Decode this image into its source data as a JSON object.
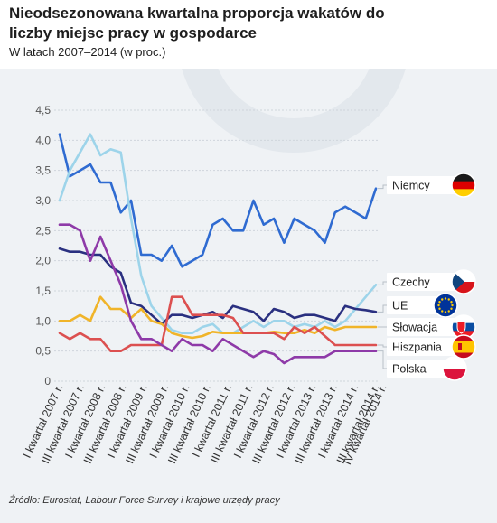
{
  "title": "Nieodsezonowana kwartalna proporcja wakatów do liczby miejsc pracy w gospodarce",
  "subtitle": "W latach 2007–2014 (w proc.)",
  "source": "Źródło: Eurostat, Labour Force Survey i krajowe urzędy pracy",
  "chart_data": {
    "type": "line",
    "ylim": [
      0,
      4.5
    ],
    "yticks": [
      "0",
      "0,5",
      "1,0",
      "1,5",
      "2,0",
      "2,5",
      "3,0",
      "3,5",
      "4,0",
      "4,5"
    ],
    "x": [
      "2007Q1",
      "2007Q2",
      "2007Q3",
      "2007Q4",
      "2008Q1",
      "2008Q2",
      "2008Q3",
      "2008Q4",
      "2009Q1",
      "2009Q2",
      "2009Q3",
      "2009Q4",
      "2010Q1",
      "2010Q2",
      "2010Q3",
      "2010Q4",
      "2011Q1",
      "2011Q2",
      "2011Q3",
      "2011Q4",
      "2012Q1",
      "2012Q2",
      "2012Q3",
      "2012Q4",
      "2013Q1",
      "2013Q2",
      "2013Q3",
      "2013Q4",
      "2014Q1",
      "2014Q2",
      "2014Q3",
      "2014Q4"
    ],
    "x_tick_labels": [
      "I kwartał 2007 r.",
      "III kwartał 2007 r.",
      "I kwartał 2008 r.",
      "III kwartał 2008 r.",
      "I kwartał 2009 r.",
      "III kwartał 2009 r.",
      "I kwartał 2010 r.",
      "III kwartał 2010 r.",
      "I kwartał 2011 r.",
      "III kwartał 2011 r.",
      "I kwartał 2012 r.",
      "III kwartał 2012 r.",
      "I kwartał 2013 r.",
      "III kwartał 2013 r.",
      "I kwartał 2014 r.",
      "III kwartał 2014 r.",
      "IV kwartał 2014 r."
    ],
    "series": [
      {
        "name": "Niemcy",
        "color": "#2f6bd1",
        "flag": "de",
        "values": [
          4.1,
          3.4,
          3.5,
          3.6,
          3.3,
          3.3,
          2.8,
          3.0,
          2.1,
          2.1,
          2.0,
          2.25,
          1.9,
          2.0,
          2.1,
          2.6,
          2.7,
          2.5,
          2.5,
          3.0,
          2.6,
          2.7,
          2.3,
          2.7,
          2.6,
          2.5,
          2.3,
          2.8,
          2.9,
          2.8,
          2.7,
          3.2
        ]
      },
      {
        "name": "Czechy",
        "color": "#9dd4ea",
        "flag": "cz",
        "values": [
          3.0,
          3.5,
          3.8,
          4.1,
          3.75,
          3.85,
          3.8,
          2.7,
          1.75,
          1.25,
          1.05,
          0.85,
          0.8,
          0.8,
          0.9,
          0.95,
          0.8,
          0.8,
          0.9,
          1.0,
          0.9,
          1.0,
          1.0,
          0.9,
          0.95,
          0.9,
          1.0,
          0.9,
          1.0,
          1.2,
          1.4,
          1.6
        ]
      },
      {
        "name": "UE",
        "color": "#2a3080",
        "flag": "eu",
        "values": [
          2.2,
          2.15,
          2.15,
          2.1,
          2.1,
          1.9,
          1.8,
          1.3,
          1.25,
          1.1,
          0.95,
          1.1,
          1.1,
          1.05,
          1.1,
          1.15,
          1.05,
          1.25,
          1.2,
          1.15,
          1.0,
          1.2,
          1.15,
          1.05,
          1.1,
          1.1,
          1.05,
          1.0,
          1.25,
          1.2,
          1.18,
          1.15
        ]
      },
      {
        "name": "Słowacja",
        "color": "#f0b429",
        "flag": "sk",
        "values": [
          1.0,
          1.0,
          1.1,
          1.0,
          1.4,
          1.2,
          1.2,
          1.05,
          1.2,
          1.0,
          0.95,
          0.8,
          0.75,
          0.72,
          0.75,
          0.82,
          0.8,
          0.8,
          0.8,
          0.8,
          0.8,
          0.82,
          0.8,
          0.8,
          0.85,
          0.8,
          0.9,
          0.85,
          0.9,
          0.9,
          0.9,
          0.9
        ]
      },
      {
        "name": "Hiszpania",
        "color": "#dc5050",
        "flag": "es",
        "values": [
          0.8,
          0.7,
          0.8,
          0.7,
          0.7,
          0.5,
          0.5,
          0.6,
          0.6,
          0.6,
          0.6,
          1.4,
          1.4,
          1.1,
          1.1,
          1.1,
          1.1,
          1.05,
          0.8,
          0.8,
          0.8,
          0.8,
          0.7,
          0.9,
          0.8,
          0.9,
          0.75,
          0.6,
          0.6,
          0.6,
          0.6,
          0.6
        ]
      },
      {
        "name": "Polska",
        "color": "#8e3aa8",
        "flag": "pl",
        "values": [
          2.6,
          2.6,
          2.5,
          2.0,
          2.4,
          2.0,
          1.6,
          1.0,
          0.7,
          0.7,
          0.6,
          0.5,
          0.7,
          0.6,
          0.6,
          0.5,
          0.7,
          0.6,
          0.5,
          0.4,
          0.5,
          0.45,
          0.3,
          0.4,
          0.4,
          0.4,
          0.4,
          0.5,
          0.5,
          0.5,
          0.5,
          0.5
        ]
      }
    ],
    "legend_position": "right",
    "grid": true
  }
}
